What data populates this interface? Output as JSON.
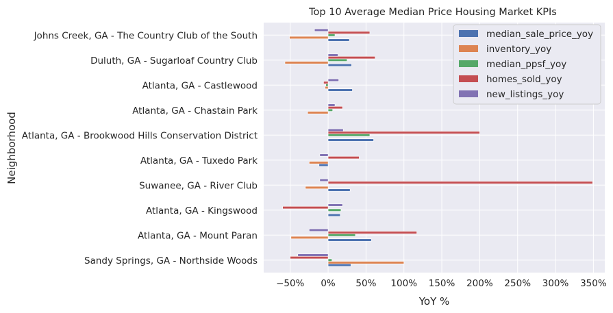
{
  "chart_data": {
    "type": "bar",
    "orientation": "horizontal",
    "title": "Top 10 Average Median Price Housing Market KPIs",
    "xlabel": "YoY %",
    "ylabel": "Neighborhood",
    "xlim": [
      -85,
      365
    ],
    "xticks": [
      -50,
      0,
      50,
      100,
      150,
      200,
      250,
      300,
      350
    ],
    "xtick_labels": [
      "−50%",
      "0%",
      "50%",
      "100%",
      "150%",
      "200%",
      "250%",
      "300%",
      "350%"
    ],
    "grid": true,
    "legend_position": "top-right",
    "categories": [
      "Sandy Springs, GA - Northside Woods",
      "Atlanta, GA - Mount Paran",
      "Atlanta, GA - Kingswood",
      "Suwanee, GA - River Club",
      "Atlanta, GA - Tuxedo Park",
      "Atlanta, GA - Brookwood Hills Conservation District",
      "Atlanta, GA - Chastain Park",
      "Atlanta, GA - Castlewood",
      "Duluth, GA - Sugarloaf Country Club",
      "Johns Creek, GA - The Country Club of the South"
    ],
    "series": [
      {
        "name": "median_sale_price_yoy",
        "color": "#4c72b0",
        "values": [
          30,
          57,
          16,
          29,
          -12,
          60,
          0,
          32,
          31,
          28
        ]
      },
      {
        "name": "inventory_yoy",
        "color": "#dd8452",
        "values": [
          100,
          -49,
          0,
          -30,
          -25,
          0,
          -27,
          -4,
          -57,
          -51
        ]
      },
      {
        "name": "median_ppsf_yoy",
        "color": "#55a868",
        "values": [
          5,
          36,
          17,
          0,
          0,
          55,
          6,
          -3,
          25,
          9
        ]
      },
      {
        "name": "homes_sold_yoy",
        "color": "#c44e52",
        "values": [
          -50,
          117,
          -60,
          349,
          41,
          200,
          19,
          -6,
          62,
          55
        ]
      },
      {
        "name": "new_listings_yoy",
        "color": "#8172b3",
        "values": [
          -40,
          -25,
          19,
          -11,
          -11,
          20,
          9,
          14,
          13,
          -18
        ]
      }
    ]
  }
}
